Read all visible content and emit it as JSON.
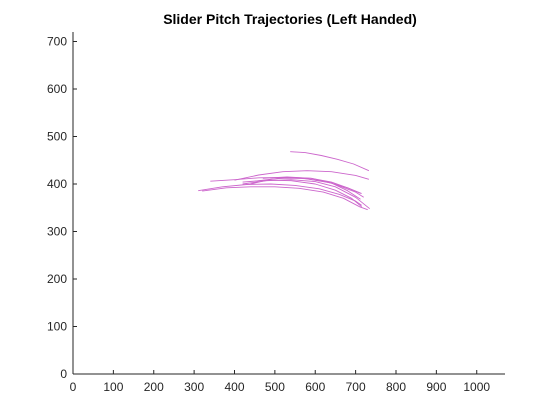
{
  "chart_data": {
    "type": "line",
    "title": "Slider Pitch Trajectories (Left Handed)",
    "xlabel": "",
    "ylabel": "",
    "xlim": [
      0,
      1070
    ],
    "ylim": [
      0,
      720
    ],
    "xticks": [
      0,
      100,
      200,
      300,
      400,
      500,
      600,
      700,
      800,
      900,
      1000
    ],
    "yticks": [
      0,
      100,
      200,
      300,
      400,
      500,
      600,
      700
    ],
    "grid": false,
    "line_color": "#cc66cc",
    "series": [
      {
        "x": [
          538,
          575,
          615,
          655,
          695,
          733
        ],
        "y": [
          468,
          466,
          460,
          452,
          442,
          428
        ]
      },
      {
        "x": [
          400,
          460,
          520,
          580,
          640,
          700,
          733
        ],
        "y": [
          408,
          419,
          426,
          428,
          426,
          418,
          410
        ]
      },
      {
        "x": [
          340,
          400,
          460,
          520,
          580,
          640,
          700,
          720
        ],
        "y": [
          406,
          409,
          413,
          414,
          411,
          402,
          383,
          372
        ]
      },
      {
        "x": [
          310,
          370,
          430,
          490,
          550,
          610,
          660,
          700,
          715
        ],
        "y": [
          386,
          394,
          399,
          400,
          397,
          390,
          378,
          364,
          355
        ]
      },
      {
        "x": [
          320,
          380,
          440,
          500,
          560,
          620,
          670,
          710,
          730
        ],
        "y": [
          385,
          392,
          394,
          394,
          391,
          383,
          370,
          352,
          346
        ]
      },
      {
        "x": [
          440,
          490,
          540,
          590,
          640,
          680,
          713
        ],
        "y": [
          400,
          410,
          414,
          412,
          404,
          392,
          380
        ]
      },
      {
        "x": [
          450,
          510,
          570,
          630,
          680,
          715
        ],
        "y": [
          406,
          412,
          412,
          404,
          392,
          380
        ]
      },
      {
        "x": [
          470,
          530,
          590,
          640,
          680,
          712
        ],
        "y": [
          412,
          415,
          412,
          402,
          386,
          368
        ]
      },
      {
        "x": [
          420,
          480,
          540,
          600,
          650,
          690,
          715
        ],
        "y": [
          404,
          408,
          407,
          400,
          387,
          370,
          352
        ]
      },
      {
        "x": [
          420,
          480,
          540,
          600,
          650,
          700,
          735
        ],
        "y": [
          400,
          407,
          409,
          405,
          394,
          372,
          348
        ]
      }
    ]
  }
}
